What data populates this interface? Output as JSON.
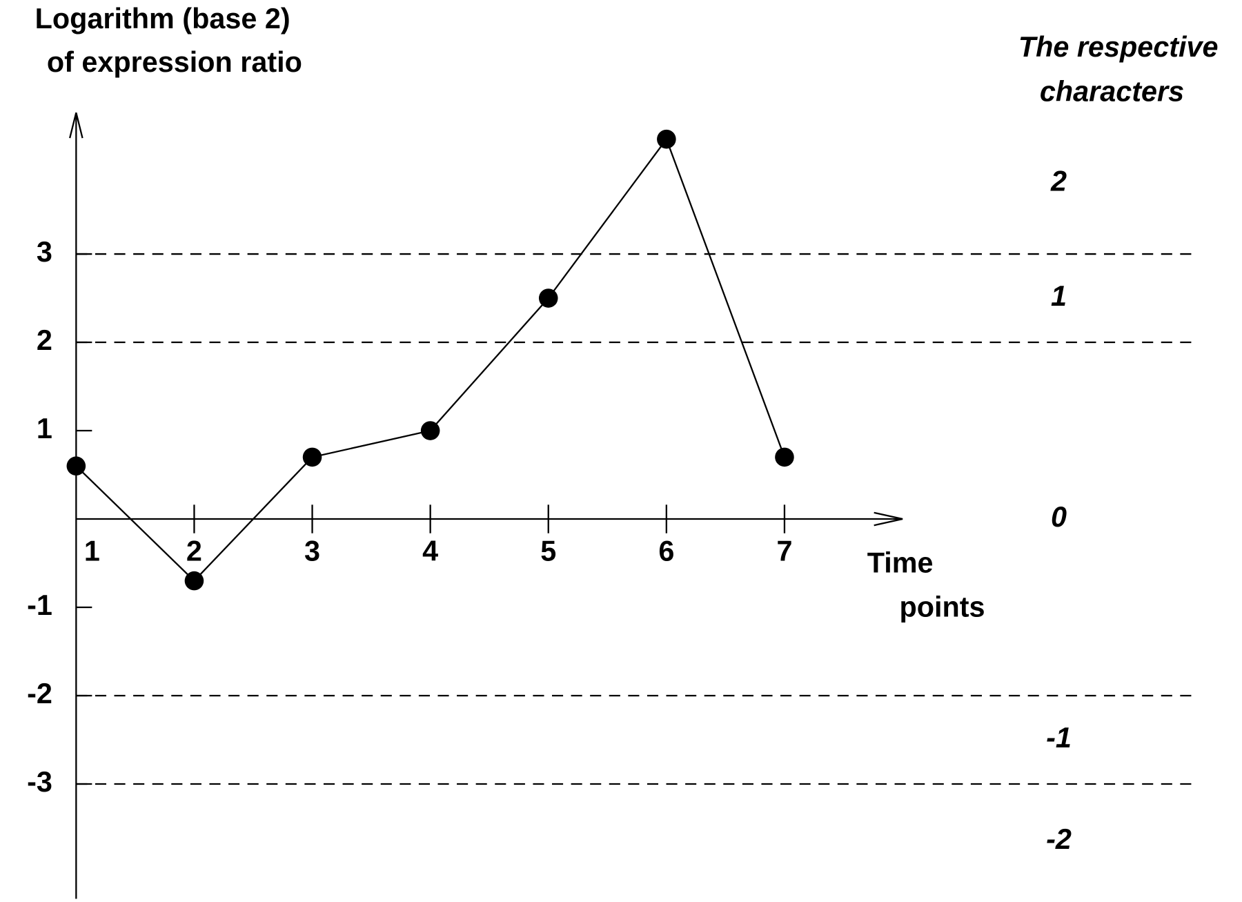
{
  "chart_data": {
    "type": "line",
    "y_label": [
      "Logarithm (base 2)",
      "of expression ratio"
    ],
    "x_label": [
      "Time",
      "points"
    ],
    "characters_title": [
      "The respective",
      "characters"
    ],
    "x": [
      1,
      2,
      3,
      4,
      5,
      6,
      7
    ],
    "values": [
      0.6,
      -0.7,
      0.7,
      1.0,
      2.5,
      4.3,
      0.7
    ],
    "color": "#000000",
    "xlim": [
      1,
      8
    ],
    "xticks": [
      1,
      2,
      3,
      4,
      5,
      6,
      7
    ],
    "ylim": [
      -4.3,
      4.6
    ],
    "yticks": [
      -3,
      -2,
      -1,
      1,
      2,
      3
    ],
    "thresholds": [
      -3,
      -2,
      2,
      3
    ],
    "characters": [
      -2,
      -1,
      0,
      1,
      2
    ],
    "grid": false
  }
}
